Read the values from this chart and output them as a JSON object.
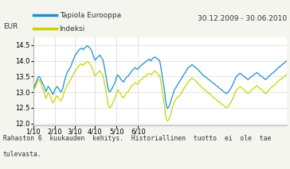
{
  "title_date": "30.12.2009 - 30.06.2010",
  "ylabel": "EUR",
  "legend_labels": [
    "Tapiola Eurooppa",
    "Indeksi"
  ],
  "line_colors": [
    "#1a8fcd",
    "#c8d400"
  ],
  "ylim": [
    11.95,
    14.75
  ],
  "yticks": [
    12,
    12.5,
    13,
    13.5,
    14,
    14.5
  ],
  "xtick_labels": [
    "1/10",
    "2/10",
    "3/10",
    "4/10",
    "5/10",
    "6/10"
  ],
  "footer_text": "Rahaston 6  kuukauden  kehitys.  Historiallinen  tuotto  ei  ole  tae\ntulevasta.",
  "background_color": "#f5f5f0",
  "plot_bg_color": "#ffffff",
  "grid_color": "#d8d8d8",
  "tapiola": [
    13.12,
    13.18,
    13.25,
    13.32,
    13.42,
    13.48,
    13.5,
    13.45,
    13.38,
    13.3,
    13.25,
    13.18,
    13.08,
    13.02,
    13.1,
    13.18,
    13.15,
    13.1,
    13.05,
    12.98,
    12.92,
    13.0,
    13.08,
    13.12,
    13.18,
    13.15,
    13.1,
    13.05,
    13.0,
    13.05,
    13.12,
    13.25,
    13.38,
    13.48,
    13.58,
    13.65,
    13.7,
    13.75,
    13.8,
    13.88,
    13.98,
    14.05,
    14.12,
    14.18,
    14.22,
    14.28,
    14.32,
    14.35,
    14.38,
    14.4,
    14.38,
    14.35,
    14.4,
    14.42,
    14.45,
    14.48,
    14.45,
    14.42,
    14.4,
    14.35,
    14.28,
    14.18,
    14.08,
    14.02,
    14.05,
    14.1,
    14.12,
    14.15,
    14.18,
    14.12,
    14.08,
    14.02,
    13.88,
    13.72,
    13.55,
    13.35,
    13.15,
    13.05,
    13.0,
    13.05,
    13.1,
    13.15,
    13.22,
    13.28,
    13.38,
    13.48,
    13.55,
    13.52,
    13.48,
    13.42,
    13.38,
    13.35,
    13.32,
    13.38,
    13.42,
    13.48,
    13.5,
    13.52,
    13.55,
    13.6,
    13.65,
    13.7,
    13.72,
    13.75,
    13.78,
    13.75,
    13.72,
    13.75,
    13.78,
    13.82,
    13.85,
    13.88,
    13.9,
    13.92,
    13.95,
    13.98,
    14.0,
    14.02,
    14.05,
    14.02,
    14.0,
    14.05,
    14.08,
    14.1,
    14.12,
    14.1,
    14.08,
    14.05,
    14.02,
    14.0,
    13.82,
    13.62,
    13.42,
    13.22,
    13.02,
    12.72,
    12.55,
    12.48,
    12.52,
    12.58,
    12.68,
    12.78,
    12.88,
    12.98,
    13.08,
    13.12,
    13.18,
    13.22,
    13.28,
    13.32,
    13.38,
    13.42,
    13.48,
    13.52,
    13.58,
    13.62,
    13.68,
    13.72,
    13.78,
    13.8,
    13.82,
    13.85,
    13.88,
    13.85,
    13.82,
    13.8,
    13.78,
    13.75,
    13.72,
    13.68,
    13.65,
    13.62,
    13.58,
    13.55,
    13.52,
    13.5,
    13.48,
    13.45,
    13.42,
    13.4,
    13.38,
    13.35,
    13.32,
    13.3,
    13.28,
    13.25,
    13.22,
    13.2,
    13.18,
    13.15,
    13.12,
    13.1,
    13.08,
    13.05,
    13.02,
    13.0,
    12.98,
    12.95,
    12.98,
    13.0,
    13.05,
    13.1,
    13.15,
    13.2,
    13.28,
    13.35,
    13.42,
    13.48,
    13.52,
    13.55,
    13.58,
    13.6,
    13.58,
    13.55,
    13.52,
    13.5,
    13.48,
    13.45,
    13.42,
    13.4,
    13.42,
    13.45,
    13.48,
    13.5,
    13.52,
    13.55,
    13.58,
    13.6,
    13.62,
    13.6,
    13.58,
    13.55,
    13.52,
    13.5,
    13.48,
    13.45,
    13.42,
    13.4,
    13.42,
    13.45,
    13.5,
    13.52,
    13.55,
    13.58,
    13.6,
    13.62,
    13.65,
    13.68,
    13.72,
    13.75,
    13.78,
    13.8,
    13.82,
    13.85,
    13.88,
    13.9,
    13.92,
    13.95,
    13.98,
    14.0
  ],
  "indeksi": [
    13.08,
    13.1,
    13.15,
    13.22,
    13.35,
    13.38,
    13.4,
    13.32,
    13.25,
    13.15,
    13.08,
    12.98,
    12.88,
    12.8,
    12.88,
    12.98,
    12.95,
    12.88,
    12.82,
    12.72,
    12.65,
    12.72,
    12.78,
    12.82,
    12.88,
    12.85,
    12.8,
    12.75,
    12.72,
    12.78,
    12.82,
    12.98,
    13.05,
    13.12,
    13.18,
    13.25,
    13.28,
    13.35,
    13.38,
    13.45,
    13.52,
    13.58,
    13.65,
    13.68,
    13.72,
    13.78,
    13.82,
    13.85,
    13.88,
    13.9,
    13.88,
    13.85,
    13.9,
    13.92,
    13.95,
    13.98,
    13.95,
    13.92,
    13.88,
    13.85,
    13.78,
    13.68,
    13.58,
    13.52,
    13.55,
    13.58,
    13.62,
    13.65,
    13.68,
    13.62,
    13.58,
    13.52,
    13.38,
    13.22,
    13.08,
    12.88,
    12.68,
    12.55,
    12.5,
    12.52,
    12.58,
    12.65,
    12.72,
    12.78,
    12.88,
    12.98,
    13.08,
    13.05,
    12.98,
    12.95,
    12.88,
    12.85,
    12.82,
    12.88,
    12.92,
    12.98,
    13.0,
    13.02,
    13.08,
    13.12,
    13.18,
    13.22,
    13.25,
    13.28,
    13.3,
    13.28,
    13.25,
    13.28,
    13.32,
    13.38,
    13.4,
    13.42,
    13.45,
    13.48,
    13.5,
    13.52,
    13.55,
    13.58,
    13.6,
    13.58,
    13.55,
    13.58,
    13.62,
    13.65,
    13.68,
    13.65,
    13.62,
    13.58,
    13.55,
    13.52,
    13.35,
    13.15,
    12.95,
    12.75,
    12.55,
    12.25,
    12.12,
    12.08,
    12.12,
    12.18,
    12.28,
    12.4,
    12.52,
    12.62,
    12.68,
    12.75,
    12.8,
    12.82,
    12.85,
    12.88,
    12.92,
    12.98,
    13.02,
    13.08,
    13.12,
    13.18,
    13.22,
    13.28,
    13.32,
    13.35,
    13.4,
    13.42,
    13.45,
    13.42,
    13.4,
    13.38,
    13.35,
    13.32,
    13.28,
    13.25,
    13.22,
    13.18,
    13.15,
    13.12,
    13.1,
    13.08,
    13.05,
    13.02,
    12.98,
    12.95,
    12.95,
    12.92,
    12.88,
    12.85,
    12.82,
    12.8,
    12.78,
    12.75,
    12.72,
    12.7,
    12.68,
    12.65,
    12.62,
    12.6,
    12.58,
    12.55,
    12.52,
    12.5,
    12.52,
    12.55,
    12.6,
    12.65,
    12.7,
    12.75,
    12.82,
    12.9,
    12.98,
    13.05,
    13.08,
    13.12,
    13.15,
    13.18,
    13.15,
    13.12,
    13.1,
    13.08,
    13.05,
    13.02,
    12.98,
    12.95,
    12.98,
    13.0,
    13.05,
    13.08,
    13.1,
    13.12,
    13.15,
    13.18,
    13.2,
    13.18,
    13.15,
    13.12,
    13.1,
    13.08,
    13.05,
    13.02,
    12.98,
    12.95,
    12.98,
    13.0,
    13.05,
    13.08,
    13.12,
    13.15,
    13.18,
    13.2,
    13.22,
    13.25,
    13.28,
    13.32,
    13.35,
    13.38,
    13.4,
    13.42,
    13.45,
    13.48,
    13.5,
    13.52,
    13.55,
    13.58
  ]
}
